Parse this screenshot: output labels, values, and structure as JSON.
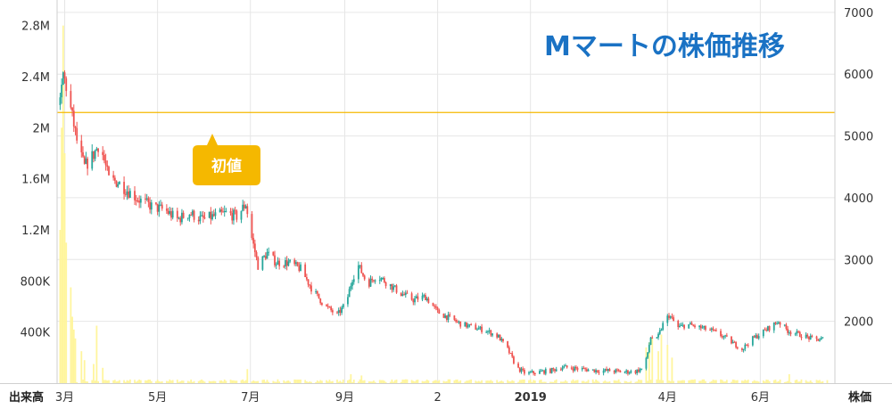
{
  "chart_data": {
    "type": "candlestick",
    "title": "Mマートの株価推移",
    "y_left_label": "出来高",
    "y_right_label": "株価",
    "y_left_ticks": [
      "400K",
      "800K",
      "1.2M",
      "1.6M",
      "2M",
      "2.4M",
      "2.8M"
    ],
    "y_left_tick_values": [
      400000,
      800000,
      1200000,
      1600000,
      2000000,
      2400000,
      2800000
    ],
    "y_left_range": [
      0,
      3000000
    ],
    "y_right_ticks": [
      "2000",
      "3000",
      "4000",
      "5000",
      "6000",
      "7000"
    ],
    "y_right_tick_values": [
      2000,
      3000,
      4000,
      5000,
      6000,
      7000
    ],
    "y_right_range": [
      1000,
      7200
    ],
    "x_ticks": [
      {
        "label": "3月",
        "x": "2018-03-01"
      },
      {
        "label": "5月",
        "x": "2018-05-01"
      },
      {
        "label": "7月",
        "x": "2018-07-01"
      },
      {
        "label": "9月",
        "x": "2018-09-01"
      },
      {
        "label": "2",
        "x": "2018-11-01"
      },
      {
        "label": "2019",
        "x": "2019-01-01",
        "bold": true
      },
      {
        "label": "4月",
        "x": "2019-04-01"
      },
      {
        "label": "6月",
        "x": "2019-06-01"
      }
    ],
    "x_range": [
      "2018-02-24",
      "2019-07-20"
    ],
    "reference_line": {
      "value": 5380,
      "label": "初値",
      "color": "#f5b800"
    },
    "colors": {
      "up": "#26a69a",
      "down": "#ef5350",
      "volume": "#fff59d",
      "grid": "#e6e6e6",
      "title": "#1a72c4"
    },
    "price_path": [
      [
        "2018-02-26",
        5500
      ],
      [
        "2018-02-28",
        6000
      ],
      [
        "2018-03-02",
        5800
      ],
      [
        "2018-03-06",
        5300
      ],
      [
        "2018-03-10",
        4800
      ],
      [
        "2018-03-14",
        4500
      ],
      [
        "2018-03-20",
        4700
      ],
      [
        "2018-03-24",
        4900
      ],
      [
        "2018-03-30",
        4300
      ],
      [
        "2018-04-05",
        4250
      ],
      [
        "2018-04-12",
        4100
      ],
      [
        "2018-04-20",
        3950
      ],
      [
        "2018-04-28",
        3850
      ],
      [
        "2018-05-06",
        3800
      ],
      [
        "2018-05-14",
        3650
      ],
      [
        "2018-05-22",
        3750
      ],
      [
        "2018-05-30",
        3650
      ],
      [
        "2018-06-07",
        3700
      ],
      [
        "2018-06-15",
        3750
      ],
      [
        "2018-06-22",
        3700
      ],
      [
        "2018-06-28",
        3900
      ],
      [
        "2018-07-02",
        3350
      ],
      [
        "2018-07-06",
        2900
      ],
      [
        "2018-07-12",
        3100
      ],
      [
        "2018-07-18",
        2950
      ],
      [
        "2018-07-26",
        2950
      ],
      [
        "2018-08-03",
        2850
      ],
      [
        "2018-08-11",
        2500
      ],
      [
        "2018-08-19",
        2250
      ],
      [
        "2018-08-27",
        2100
      ],
      [
        "2018-09-02",
        2300
      ],
      [
        "2018-09-06",
        2700
      ],
      [
        "2018-09-10",
        2900
      ],
      [
        "2018-09-16",
        2600
      ],
      [
        "2018-09-22",
        2750
      ],
      [
        "2018-09-30",
        2600
      ],
      [
        "2018-10-08",
        2450
      ],
      [
        "2018-10-16",
        2350
      ],
      [
        "2018-10-24",
        2400
      ],
      [
        "2018-11-01",
        2150
      ],
      [
        "2018-11-09",
        2050
      ],
      [
        "2018-11-17",
        1950
      ],
      [
        "2018-11-25",
        1900
      ],
      [
        "2018-12-03",
        1850
      ],
      [
        "2018-12-11",
        1750
      ],
      [
        "2018-12-17",
        1550
      ],
      [
        "2018-12-23",
        1250
      ],
      [
        "2018-12-29",
        1150
      ],
      [
        "2019-01-06",
        1180
      ],
      [
        "2019-01-14",
        1200
      ],
      [
        "2019-01-22",
        1260
      ],
      [
        "2019-01-30",
        1240
      ],
      [
        "2019-02-07",
        1220
      ],
      [
        "2019-02-15",
        1200
      ],
      [
        "2019-02-23",
        1200
      ],
      [
        "2019-03-03",
        1180
      ],
      [
        "2019-03-11",
        1190
      ],
      [
        "2019-03-17",
        1250
      ],
      [
        "2019-03-21",
        1750
      ],
      [
        "2019-03-25",
        1700
      ],
      [
        "2019-03-29",
        1950
      ],
      [
        "2019-04-02",
        2100
      ],
      [
        "2019-04-08",
        1900
      ],
      [
        "2019-04-14",
        1950
      ],
      [
        "2019-04-22",
        1900
      ],
      [
        "2019-04-30",
        1850
      ],
      [
        "2019-05-08",
        1750
      ],
      [
        "2019-05-14",
        1650
      ],
      [
        "2019-05-20",
        1550
      ],
      [
        "2019-05-26",
        1700
      ],
      [
        "2019-06-01",
        1800
      ],
      [
        "2019-06-07",
        1900
      ],
      [
        "2019-06-13",
        2000
      ],
      [
        "2019-06-19",
        1850
      ],
      [
        "2019-06-25",
        1800
      ],
      [
        "2019-07-01",
        1750
      ],
      [
        "2019-07-07",
        1700
      ],
      [
        "2019-07-13",
        1720
      ]
    ],
    "volume_spikes": [
      [
        "2018-02-26",
        1200000
      ],
      [
        "2018-02-27",
        2000000
      ],
      [
        "2018-02-28",
        2800000
      ],
      [
        "2018-03-01",
        1800000
      ],
      [
        "2018-03-02",
        1100000
      ],
      [
        "2018-03-05",
        750000
      ],
      [
        "2018-03-06",
        520000
      ],
      [
        "2018-03-07",
        420000
      ],
      [
        "2018-03-08",
        350000
      ],
      [
        "2018-03-12",
        250000
      ],
      [
        "2018-03-14",
        180000
      ],
      [
        "2018-03-20",
        150000
      ],
      [
        "2018-03-22",
        450000
      ],
      [
        "2018-03-26",
        120000
      ],
      [
        "2018-06-29",
        110000
      ],
      [
        "2018-09-05",
        70000
      ],
      [
        "2018-09-12",
        60000
      ],
      [
        "2019-03-18",
        280000
      ],
      [
        "2019-03-20",
        320000
      ],
      [
        "2019-03-22",
        350000
      ],
      [
        "2019-03-26",
        250000
      ],
      [
        "2019-03-28",
        380000
      ],
      [
        "2019-04-01",
        300000
      ],
      [
        "2019-04-04",
        200000
      ],
      [
        "2019-06-20",
        70000
      ]
    ]
  }
}
